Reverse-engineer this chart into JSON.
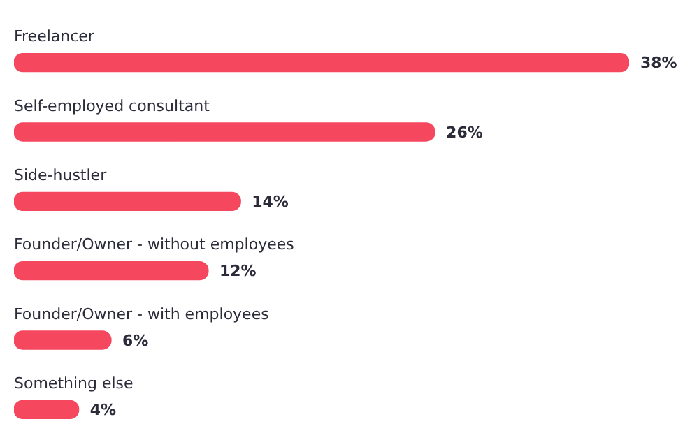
{
  "chart_data": {
    "type": "bar",
    "orientation": "horizontal",
    "categories": [
      "Freelancer",
      "Self-employed consultant",
      "Side-hustler",
      "Founder/Owner - without employees",
      "Founder/Owner - with employees",
      "Something else"
    ],
    "values": [
      38,
      26,
      14,
      12,
      6,
      4
    ],
    "value_labels": [
      "38%",
      "26%",
      "14%",
      "12%",
      "6%",
      "4%"
    ],
    "color": "#f5475e",
    "xlim": [
      0,
      38
    ],
    "tick_labels": "y"
  }
}
